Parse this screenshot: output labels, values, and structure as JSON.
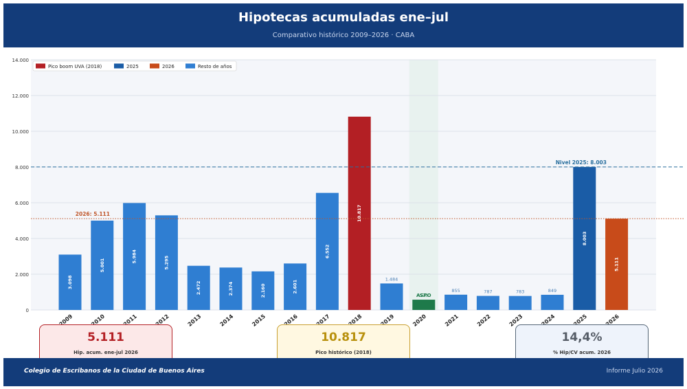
{
  "header": {
    "title": "Hipotecas acumuladas ene–jul",
    "subtitle": "Comparativo histórico 2009–2026 · CABA"
  },
  "colors": {
    "peak": "#b31f24",
    "y2025": "#1a5ca6",
    "y2026": "#c84b1a",
    "rest": "#2f7ed2",
    "aspo": "#1e7a4a",
    "header_bg": "#133c7a"
  },
  "chart_data": {
    "type": "bar",
    "categories": [
      "2009",
      "2010",
      "2011",
      "2012",
      "2013",
      "2014",
      "2015",
      "2016",
      "2017",
      "2018",
      "2019",
      "2020",
      "2021",
      "2022",
      "2023",
      "2024",
      "2025",
      "2026"
    ],
    "values": [
      3098,
      5001,
      5984,
      5295,
      2472,
      2374,
      2160,
      2601,
      6552,
      10817,
      1484,
      575,
      855,
      787,
      783,
      849,
      8003,
      5111
    ],
    "value_labels": [
      "3.098",
      "5.001",
      "5.984",
      "5.295",
      "2.472",
      "2.374",
      "2.160",
      "2.601",
      "6.552",
      "10.817",
      "1.484",
      "575",
      "855",
      "787",
      "783",
      "849",
      "8.003",
      "5.111"
    ],
    "bar_roles": [
      "rest",
      "rest",
      "rest",
      "rest",
      "rest",
      "rest",
      "rest",
      "rest",
      "rest",
      "peak",
      "rest",
      "aspo",
      "rest",
      "rest",
      "rest",
      "rest",
      "y2025",
      "y2026"
    ],
    "ylim": [
      0,
      14000
    ],
    "yticks": [
      0,
      2000,
      4000,
      6000,
      8000,
      10000,
      12000,
      14000
    ],
    "ytick_labels": [
      "0",
      "2.000",
      "4.000",
      "6.000",
      "8.000",
      "10.000",
      "12.000",
      "14.000"
    ],
    "legend": [
      {
        "name": "Pico boom UVA (2018)",
        "role": "peak"
      },
      {
        "name": "2025",
        "role": "y2025"
      },
      {
        "name": "2026",
        "role": "y2026"
      },
      {
        "name": "Resto de años",
        "role": "rest"
      }
    ],
    "legend_position": "top-left",
    "grid": true,
    "reference_lines": [
      {
        "label": "Nivel 2025: 8.003",
        "value": 8003,
        "style": "dashed",
        "color": "#2a6f9e"
      },
      {
        "label": "2026: 5.111",
        "value": 5111,
        "style": "dotted",
        "color": "#c0562a"
      }
    ],
    "annotations": [
      {
        "text": "ASPO",
        "category": "2020"
      }
    ],
    "shaded_category": "2020"
  },
  "cards": [
    {
      "value": "5.111",
      "label": "Hip. acum. ene-jul 2026",
      "color": "#b31f24",
      "bg": "#fce8e8",
      "border": "#b31f24"
    },
    {
      "value": "10.817",
      "label": "Pico histórico (2018)",
      "color": "#b8900c",
      "bg": "#fff8e1",
      "border": "#c8a030"
    },
    {
      "value": "14,4%",
      "label": "% Hip/CV acum. 2026",
      "color": "#555c66",
      "bg": "#eef3fb",
      "border": "#556677"
    }
  ],
  "footer": {
    "left": "Colegio de Escribanos de la Ciudad de Buenos Aires",
    "right": "Informe Julio 2026"
  }
}
